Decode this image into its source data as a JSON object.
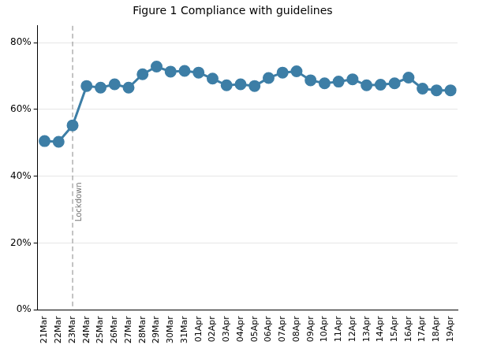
{
  "chart_data": {
    "type": "line",
    "title": "Figure 1 Compliance with guidelines",
    "categories": [
      "21Mar",
      "22Mar",
      "23Mar",
      "24Mar",
      "25Mar",
      "26Mar",
      "27Mar",
      "28Mar",
      "29Mar",
      "30Mar",
      "31Mar",
      "01Apr",
      "02Apr",
      "03Apr",
      "04Apr",
      "05Apr",
      "06Apr",
      "07Apr",
      "08Apr",
      "09Apr",
      "10Apr",
      "11Apr",
      "12Apr",
      "13Apr",
      "14Apr",
      "15Apr",
      "16Apr",
      "17Apr",
      "18Apr",
      "19Apr"
    ],
    "values": [
      50.5,
      50.3,
      55.2,
      67,
      66.5,
      67.5,
      66.5,
      70.5,
      72.8,
      71.3,
      71.5,
      71,
      69.2,
      67.2,
      67.5,
      67,
      69.4,
      71,
      71.4,
      68.7,
      67.8,
      68.3,
      69,
      67.2,
      67.4,
      67.8,
      69.5,
      66.2,
      65.7,
      65.7
    ],
    "color": "#3d7ea6",
    "marker": "circle",
    "ylim": [
      0,
      85
    ],
    "yticks": [
      {
        "value": 0,
        "label": "0%"
      },
      {
        "value": 20,
        "label": "20%"
      },
      {
        "value": 40,
        "label": "40%"
      },
      {
        "value": 60,
        "label": "60%"
      },
      {
        "value": 80,
        "label": "80%"
      }
    ],
    "grid": true,
    "annotations": [
      {
        "x": "23Mar",
        "text": "Lockdown"
      }
    ]
  }
}
